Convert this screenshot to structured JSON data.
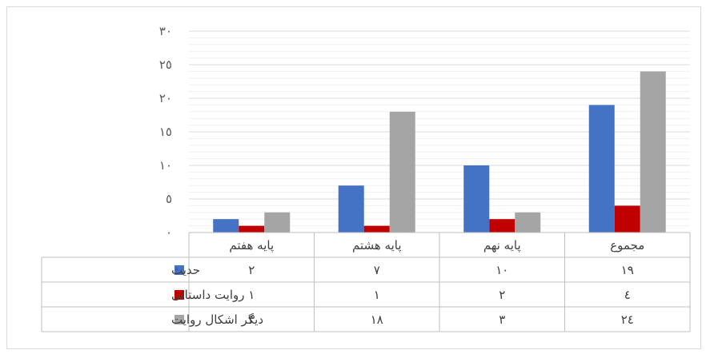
{
  "chart_data": {
    "type": "bar",
    "title": "",
    "xlabel": "",
    "ylabel": "",
    "ylim": [
      0,
      30
    ],
    "yticks": [
      0,
      5,
      10,
      15,
      20,
      25,
      30
    ],
    "ytick_labels": [
      "٠",
      "٥",
      "١٠",
      "١٥",
      "٢٠",
      "٢٥",
      "٣٠"
    ],
    "categories": [
      "پایه هفتم",
      "پایه هشتم",
      "پایه نهم",
      "مجموع"
    ],
    "series": [
      {
        "name": "حدیث",
        "color": "#4472c4",
        "values": [
          2,
          7,
          10,
          19
        ],
        "value_labels": [
          "٢",
          "٧",
          "١٠",
          "١٩"
        ]
      },
      {
        "name": "روایت داستانی",
        "color": "#c00000",
        "values": [
          1,
          1,
          2,
          4
        ],
        "value_labels": [
          "١",
          "١",
          "٢",
          "٤"
        ]
      },
      {
        "name": "دیگر اشکال روایت",
        "color": "#a5a5a5",
        "values": [
          3,
          18,
          3,
          24
        ],
        "value_labels": [
          "٣",
          "١٨",
          "٣",
          "٢٤"
        ]
      }
    ],
    "grid": true,
    "legend": "data-table",
    "data_table": true
  }
}
